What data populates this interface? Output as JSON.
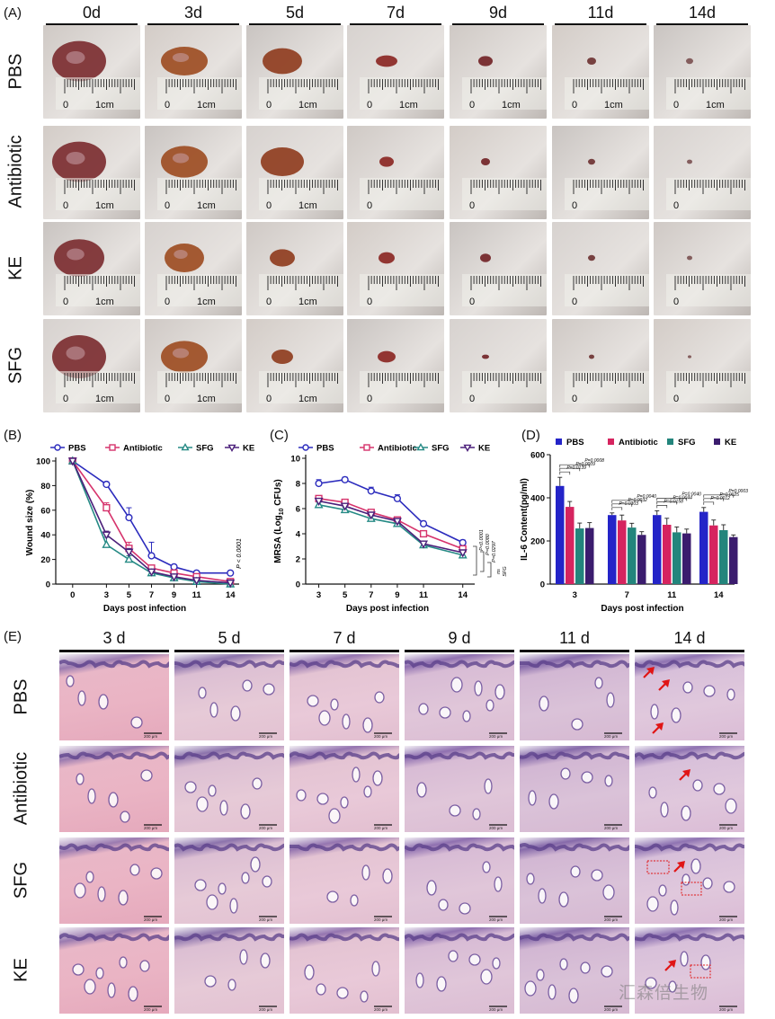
{
  "panelA": {
    "letter": "(A)",
    "days": [
      "0d",
      "3d",
      "5d",
      "7d",
      "9d",
      "11d",
      "14d"
    ],
    "groups": [
      "PBS",
      "Antibiotic",
      "KE",
      "SFG"
    ],
    "ruler_zero": "0",
    "ruler_cm": "1cm"
  },
  "panelB": {
    "letter": "(B)",
    "chart_data": {
      "type": "line",
      "x": [
        0,
        3,
        5,
        7,
        9,
        11,
        14
      ],
      "xlabel": "Days post infection",
      "ylabel": "Wound size (%)",
      "ylim": [
        0,
        100
      ],
      "yticks": [
        0,
        20,
        40,
        60,
        80,
        100
      ],
      "legend_placement": "top",
      "series": [
        {
          "name": "PBS",
          "color": "#2b2bbd",
          "marker": "circle",
          "values": [
            100,
            81,
            54,
            23,
            14,
            9,
            9
          ],
          "err": [
            0,
            2,
            8,
            11,
            1,
            1,
            1
          ]
        },
        {
          "name": "Antibiotic",
          "color": "#d6336c",
          "marker": "square",
          "values": [
            100,
            62,
            29,
            13,
            9,
            6,
            2
          ],
          "err": [
            0,
            4,
            5,
            2,
            1,
            1,
            1
          ]
        },
        {
          "name": "SFG",
          "color": "#268a85",
          "marker": "triangle",
          "values": [
            100,
            32,
            20,
            9,
            5,
            2,
            0
          ],
          "err": [
            0,
            6,
            3,
            2,
            1,
            1,
            1
          ]
        },
        {
          "name": "KE",
          "color": "#4b1f7a",
          "marker": "triangle-down",
          "values": [
            100,
            40,
            26,
            10,
            6,
            3,
            1
          ],
          "err": [
            0,
            3,
            3,
            2,
            1,
            1,
            1
          ]
        }
      ],
      "annotation": "P < 0.0001"
    }
  },
  "panelC": {
    "letter": "(C)",
    "chart_data": {
      "type": "line",
      "x": [
        3,
        5,
        7,
        9,
        11,
        14
      ],
      "xlabel": "Days post infection",
      "ylabel_prefix": "MRSA (Log",
      "ylabel_sub": "10",
      "ylabel_suffix": " CFUs)",
      "ylim": [
        0,
        10
      ],
      "yticks": [
        0,
        2,
        4,
        6,
        8,
        10
      ],
      "legend_placement": "top",
      "series": [
        {
          "name": "PBS",
          "color": "#2b2bbd",
          "marker": "circle",
          "values": [
            8.0,
            8.3,
            7.4,
            6.8,
            4.8,
            3.3
          ],
          "err": [
            0.3,
            0.2,
            0.3,
            0.3,
            0.2,
            0.2
          ]
        },
        {
          "name": "Antibiotic",
          "color": "#d6336c",
          "marker": "square",
          "values": [
            6.8,
            6.5,
            5.7,
            5.1,
            4.0,
            2.8
          ],
          "err": [
            0.2,
            0.2,
            0.2,
            0.2,
            0.2,
            0.2
          ]
        },
        {
          "name": "SFG",
          "color": "#268a85",
          "marker": "triangle",
          "values": [
            6.3,
            5.9,
            5.2,
            4.8,
            3.1,
            2.3
          ],
          "err": [
            0.2,
            0.2,
            0.2,
            0.2,
            0.2,
            0.2
          ]
        },
        {
          "name": "KE",
          "color": "#4b1f7a",
          "marker": "triangle-down",
          "values": [
            6.6,
            6.2,
            5.5,
            5.0,
            3.2,
            2.5
          ],
          "err": [
            0.2,
            0.2,
            0.2,
            0.2,
            0.2,
            0.2
          ]
        }
      ],
      "annotations": [
        "P<0.0001",
        "P=0.0080",
        "P=0.0297",
        "ns",
        "SFG"
      ]
    }
  },
  "panelD": {
    "letter": "(D)",
    "chart_data": {
      "type": "bar",
      "categories": [
        "3",
        "7",
        "11",
        "14"
      ],
      "xlabel": "Days post infection",
      "ylabel": "IL-6 Content(pg/ml)",
      "ylim": [
        0,
        600
      ],
      "yticks": [
        0,
        200,
        400,
        600
      ],
      "legend_placement": "top",
      "series": [
        {
          "name": "PBS",
          "color": "#2424c8",
          "values": [
            455,
            320,
            320,
            335
          ],
          "err": [
            40,
            10,
            20,
            20
          ]
        },
        {
          "name": "Antibiotic",
          "color": "#d6245f",
          "values": [
            358,
            295,
            275,
            272
          ],
          "err": [
            25,
            25,
            30,
            25
          ]
        },
        {
          "name": "SFG",
          "color": "#23857c",
          "values": [
            258,
            262,
            240,
            250
          ],
          "err": [
            25,
            20,
            25,
            25
          ]
        },
        {
          "name": "KE",
          "color": "#3b1c6e",
          "values": [
            260,
            228,
            235,
            218
          ],
          "err": [
            25,
            15,
            20,
            10
          ]
        }
      ],
      "annotations": [
        [
          "P=0.0139",
          "P=0.0009",
          "P=0.0008"
        ],
        [
          "P=0.0303",
          "P=0.0032",
          "P=0.0040"
        ],
        [
          "P=0.0158",
          "P=0.0044",
          "P=0.0040"
        ],
        [
          "P=0.0012",
          "P=0.0025",
          "P=0.0003"
        ]
      ]
    }
  },
  "panelE": {
    "letter": "(E)",
    "days": [
      "3 d",
      "5 d",
      "7 d",
      "9 d",
      "11 d",
      "14 d"
    ],
    "groups": [
      "PBS",
      "Antibiotic",
      "SFG",
      "KE"
    ],
    "scale_bar": "200 μm"
  },
  "watermark": "汇森倍生物",
  "colors": {
    "pbs": "#2b2bbd",
    "antibiotic": "#d6336c",
    "sfg": "#268a85",
    "ke": "#4b1f7a",
    "arrow": "#e01515"
  }
}
